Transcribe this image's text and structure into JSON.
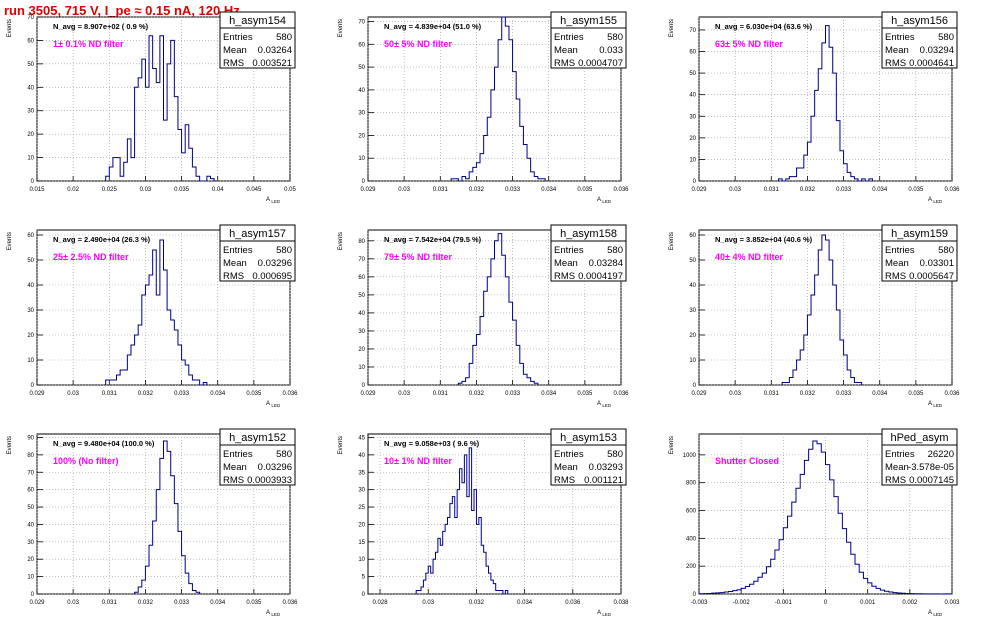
{
  "run_title": "run 3505,   715 V, I_pe ≈ 0.15 nA, 120 Hz",
  "axis_labels": {
    "y": "Events",
    "x": "A",
    "x_sub": "LED"
  },
  "stats_labels": {
    "entries": "Entries",
    "mean": "Mean",
    "rms": "RMS"
  },
  "chart_data": [
    {
      "type": "histogram",
      "name": "h_asym154",
      "navg": "N_avg = 8.907e+02 ( 0.9 %)",
      "filter": "1± 0.1% ND filter",
      "stats": {
        "entries": "580",
        "mean": "0.03264",
        "rms": "0.003521"
      },
      "xlim": [
        0.015,
        0.05
      ],
      "xticks": [
        0.015,
        0.02,
        0.025,
        0.03,
        0.035,
        0.04,
        0.045,
        0.05
      ],
      "xtick_labels": [
        "0.015",
        "0.02",
        "0.025",
        "0.03",
        "0.035",
        "0.04",
        "0.045",
        "0.05"
      ],
      "ylim": [
        0,
        70
      ],
      "yticks": [
        0,
        10,
        20,
        30,
        40,
        50,
        60,
        70
      ],
      "bin_width": 0.0005,
      "bin_start": 0.0245,
      "counts": [
        2,
        6,
        10,
        10,
        2,
        8,
        18,
        10,
        40,
        44,
        52,
        40,
        62,
        48,
        42,
        62,
        26,
        50,
        60,
        36,
        22,
        12,
        24,
        14,
        6,
        2,
        0,
        0,
        2,
        1
      ]
    },
    {
      "type": "histogram",
      "name": "h_asym155",
      "navg": "N_avg = 4.839e+04 (51.0 %)",
      "filter": "50± 5% ND filter",
      "stats": {
        "entries": "580",
        "mean": "0.033",
        "rms": "0.0004707"
      },
      "xlim": [
        0.029,
        0.036
      ],
      "xticks": [
        0.029,
        0.03,
        0.031,
        0.032,
        0.033,
        0.034,
        0.035,
        0.036
      ],
      "xtick_labels": [
        "0.029",
        "0.03",
        "0.031",
        "0.032",
        "0.033",
        "0.034",
        "0.035",
        "0.036"
      ],
      "ylim": [
        0,
        72
      ],
      "yticks": [
        0,
        10,
        20,
        30,
        40,
        50,
        60,
        70
      ],
      "bin_width": 0.0001,
      "bin_start": 0.0313,
      "counts": [
        1,
        1,
        0,
        2,
        1,
        4,
        6,
        8,
        12,
        20,
        28,
        40,
        50,
        62,
        72,
        68,
        62,
        48,
        36,
        24,
        16,
        10,
        4,
        2,
        1,
        1
      ]
    },
    {
      "type": "histogram",
      "name": "h_asym156",
      "navg": "N_avg = 6.030e+04 (63.6 %)",
      "filter": "63± 5% ND filter",
      "stats": {
        "entries": "580",
        "mean": "0.03294",
        "rms": "0.0004641"
      },
      "xlim": [
        0.029,
        0.036
      ],
      "xticks": [
        0.029,
        0.03,
        0.031,
        0.032,
        0.033,
        0.034,
        0.035,
        0.036
      ],
      "xtick_labels": [
        "0.029",
        "0.03",
        "0.031",
        "0.032",
        "0.033",
        "0.034",
        "0.035",
        "0.036"
      ],
      "ylim": [
        0,
        76
      ],
      "yticks": [
        0,
        10,
        20,
        30,
        40,
        50,
        60,
        70
      ],
      "bin_width": 0.0001,
      "bin_start": 0.0312,
      "counts": [
        1,
        0,
        1,
        2,
        2,
        6,
        6,
        12,
        18,
        30,
        42,
        52,
        64,
        72,
        62,
        50,
        28,
        14,
        8,
        4,
        2,
        1,
        0,
        1,
        0,
        1
      ]
    },
    {
      "type": "histogram",
      "name": "h_asym157",
      "navg": "N_avg = 2.490e+04 (26.3 %)",
      "filter": "25± 2.5% ND filter",
      "stats": {
        "entries": "580",
        "mean": "0.03296",
        "rms": "0.000695"
      },
      "xlim": [
        0.029,
        0.036
      ],
      "xticks": [
        0.029,
        0.03,
        0.031,
        0.032,
        0.033,
        0.034,
        0.035,
        0.036
      ],
      "xtick_labels": [
        "0.029",
        "0.03",
        "0.031",
        "0.032",
        "0.033",
        "0.034",
        "0.035",
        "0.036"
      ],
      "ylim": [
        0,
        62
      ],
      "yticks": [
        0,
        10,
        20,
        30,
        40,
        50,
        60
      ],
      "bin_width": 0.0001,
      "bin_start": 0.0309,
      "counts": [
        2,
        2,
        2,
        4,
        6,
        6,
        12,
        16,
        20,
        24,
        36,
        40,
        44,
        54,
        36,
        58,
        46,
        30,
        26,
        22,
        16,
        10,
        8,
        4,
        2,
        2,
        0,
        1
      ]
    },
    {
      "type": "histogram",
      "name": "h_asym158",
      "navg": "N_avg = 7.542e+04 (79.5 %)",
      "filter": "79± 5% ND filter",
      "stats": {
        "entries": "580",
        "mean": "0.03284",
        "rms": "0.0004197"
      },
      "xlim": [
        0.029,
        0.036
      ],
      "xticks": [
        0.029,
        0.03,
        0.031,
        0.032,
        0.033,
        0.034,
        0.035,
        0.036
      ],
      "xtick_labels": [
        "0.029",
        "0.03",
        "0.031",
        "0.032",
        "0.033",
        "0.034",
        "0.035",
        "0.036"
      ],
      "ylim": [
        0,
        86
      ],
      "yticks": [
        0,
        10,
        20,
        30,
        40,
        50,
        60,
        70,
        80
      ],
      "bin_width": 0.0001,
      "bin_start": 0.0315,
      "counts": [
        1,
        2,
        4,
        12,
        22,
        28,
        38,
        52,
        60,
        70,
        80,
        84,
        72,
        60,
        46,
        36,
        22,
        12,
        6,
        4,
        2,
        1
      ]
    },
    {
      "type": "histogram",
      "name": "h_asym159",
      "navg": "N_avg = 3.852e+04 (40.6 %)",
      "filter": "40± 4% ND filter",
      "stats": {
        "entries": "580",
        "mean": "0.03301",
        "rms": "0.0005647"
      },
      "xlim": [
        0.029,
        0.036
      ],
      "xticks": [
        0.029,
        0.03,
        0.031,
        0.032,
        0.033,
        0.034,
        0.035,
        0.036
      ],
      "xtick_labels": [
        "0.029",
        "0.03",
        "0.031",
        "0.032",
        "0.033",
        "0.034",
        "0.035",
        "0.036"
      ],
      "ylim": [
        0,
        62
      ],
      "yticks": [
        0,
        10,
        20,
        30,
        40,
        50,
        60
      ],
      "bin_width": 0.0001,
      "bin_start": 0.0313,
      "counts": [
        1,
        1,
        3,
        6,
        10,
        14,
        20,
        28,
        36,
        44,
        54,
        60,
        58,
        50,
        40,
        30,
        18,
        12,
        6,
        3,
        1,
        1
      ]
    },
    {
      "type": "histogram",
      "name": "h_asym152",
      "navg": "N_avg = 9.480e+04 (100.0 %)",
      "filter": "100% (No filter)",
      "stats": {
        "entries": "580",
        "mean": "0.03296",
        "rms": "0.0003933"
      },
      "xlim": [
        0.029,
        0.036
      ],
      "xticks": [
        0.029,
        0.03,
        0.031,
        0.032,
        0.033,
        0.034,
        0.035,
        0.036
      ],
      "xtick_labels": [
        "0.029",
        "0.03",
        "0.031",
        "0.032",
        "0.033",
        "0.034",
        "0.035",
        "0.036"
      ],
      "ylim": [
        0,
        92
      ],
      "yticks": [
        0,
        10,
        20,
        30,
        40,
        50,
        60,
        70,
        80,
        90
      ],
      "bin_width": 0.0001,
      "bin_start": 0.0317,
      "counts": [
        1,
        4,
        8,
        16,
        28,
        42,
        60,
        78,
        88,
        82,
        68,
        52,
        36,
        22,
        12,
        6,
        2,
        1
      ]
    },
    {
      "type": "histogram",
      "name": "h_asym153",
      "navg": "N_avg = 9.058e+03 ( 9.6 %)",
      "filter": "10± 1% ND filter",
      "stats": {
        "entries": "580",
        "mean": "0.03293",
        "rms": "0.001121"
      },
      "xlim": [
        0.0275,
        0.038
      ],
      "xticks": [
        0.028,
        0.03,
        0.032,
        0.034,
        0.036,
        0.038
      ],
      "xtick_labels": [
        "0.028",
        "0.03",
        "0.032",
        "0.034",
        "0.036",
        "0.038"
      ],
      "ylim": [
        0,
        46
      ],
      "yticks": [
        0,
        5,
        10,
        15,
        20,
        25,
        30,
        35,
        40,
        45
      ],
      "bin_width": 0.0001,
      "bin_start": 0.0295,
      "counts": [
        1,
        1,
        2,
        4,
        6,
        8,
        6,
        10,
        12,
        16,
        14,
        18,
        20,
        22,
        26,
        28,
        22,
        30,
        36,
        32,
        40,
        28,
        42,
        24,
        30,
        20,
        22,
        14,
        12,
        8,
        6,
        4,
        3,
        1,
        1,
        1,
        0,
        1
      ]
    },
    {
      "type": "histogram",
      "name": "hPed_asym",
      "navg": "",
      "filter": "Shutter Closed",
      "stats": {
        "entries": "26220",
        "mean": "-3.578e-05",
        "rms": "0.0007145"
      },
      "xlim": [
        -0.003,
        0.003
      ],
      "xticks": [
        -0.003,
        -0.002,
        -0.001,
        0,
        0.001,
        0.002,
        0.003
      ],
      "xtick_labels": [
        "-0.003",
        "-0.002",
        "-0.001",
        "0",
        "0.001",
        "0.002",
        "0.003"
      ],
      "ylim": [
        0,
        1150
      ],
      "yticks": [
        0,
        200,
        400,
        600,
        800,
        1000
      ],
      "bin_width": 0.0001,
      "bin_start": -0.003,
      "counts": [
        2,
        3,
        4,
        6,
        8,
        10,
        14,
        18,
        24,
        30,
        40,
        54,
        70,
        92,
        120,
        150,
        196,
        250,
        316,
        390,
        476,
        560,
        660,
        760,
        860,
        960,
        1040,
        1100,
        1080,
        1020,
        930,
        820,
        700,
        580,
        470,
        372,
        286,
        214,
        156,
        112,
        80,
        56,
        40,
        28,
        20,
        14,
        10,
        7,
        5,
        4,
        3,
        2,
        2,
        1,
        1,
        1,
        1,
        0,
        1,
        1
      ]
    }
  ]
}
